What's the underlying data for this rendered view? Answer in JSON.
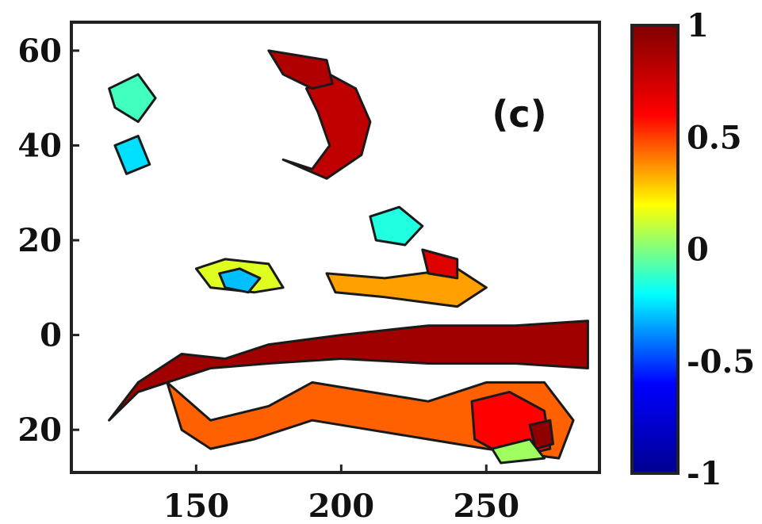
{
  "chart_data": {
    "type": "heatmap",
    "panel_label": "(c)",
    "title": "",
    "xlabel": "",
    "ylabel": "",
    "x_ticks": [
      150,
      200,
      250
    ],
    "y_ticks": [
      {
        "value": 60,
        "label": "60"
      },
      {
        "value": 40,
        "label": "40"
      },
      {
        "value": 20,
        "label": "20"
      },
      {
        "value": 0,
        "label": "0"
      },
      {
        "value": -20,
        "label": "20"
      }
    ],
    "xlim": [
      107,
      289
    ],
    "ylim": [
      -29,
      66
    ],
    "colorbar": {
      "range": [
        -1,
        1
      ],
      "ticks": [
        {
          "value": 1,
          "label": "1"
        },
        {
          "value": 0.5,
          "label": "0.5"
        },
        {
          "value": 0,
          "label": "0"
        },
        {
          "value": -0.5,
          "label": "-0.5"
        },
        {
          "value": -1,
          "label": "-1"
        }
      ],
      "colormap": [
        "#00008f",
        "#0000ff",
        "#00ffff",
        "#ffff00",
        "#ff0000",
        "#800000"
      ]
    },
    "regions": [
      {
        "value": 0.9,
        "points": [
          [
            160,
            -5
          ],
          [
            175,
            -2
          ],
          [
            200,
            0
          ],
          [
            230,
            2
          ],
          [
            260,
            2
          ],
          [
            285,
            3
          ],
          [
            285,
            -7
          ],
          [
            260,
            -6
          ],
          [
            230,
            -6
          ],
          [
            200,
            -5
          ],
          [
            175,
            -6
          ],
          [
            155,
            -7
          ],
          [
            130,
            -12
          ],
          [
            120,
            -18
          ],
          [
            130,
            -10
          ],
          [
            145,
            -4
          ]
        ]
      },
      {
        "value": 0.8,
        "points": [
          [
            180,
            37
          ],
          [
            190,
            35
          ],
          [
            196,
            40
          ],
          [
            192,
            47
          ],
          [
            188,
            52
          ],
          [
            196,
            55
          ],
          [
            205,
            52
          ],
          [
            210,
            45
          ],
          [
            207,
            38
          ],
          [
            195,
            33
          ]
        ]
      },
      {
        "value": 0.85,
        "points": [
          [
            175,
            60
          ],
          [
            195,
            58
          ],
          [
            197,
            53
          ],
          [
            190,
            52
          ],
          [
            180,
            55
          ]
        ]
      },
      {
        "value": 0.45,
        "points": [
          [
            140,
            -10
          ],
          [
            155,
            -18
          ],
          [
            175,
            -15
          ],
          [
            190,
            -10
          ],
          [
            210,
            -12
          ],
          [
            230,
            -14
          ],
          [
            250,
            -10
          ],
          [
            270,
            -10
          ],
          [
            280,
            -18
          ],
          [
            275,
            -26
          ],
          [
            250,
            -24
          ],
          [
            230,
            -22
          ],
          [
            210,
            -20
          ],
          [
            190,
            -18
          ],
          [
            170,
            -22
          ],
          [
            155,
            -24
          ],
          [
            145,
            -20
          ]
        ]
      },
      {
        "value": 0.35,
        "points": [
          [
            195,
            13
          ],
          [
            215,
            12
          ],
          [
            240,
            14
          ],
          [
            250,
            10
          ],
          [
            240,
            6
          ],
          [
            215,
            8
          ],
          [
            198,
            9
          ]
        ]
      },
      {
        "value": 0.15,
        "points": [
          [
            150,
            14
          ],
          [
            160,
            16
          ],
          [
            175,
            15
          ],
          [
            180,
            10
          ],
          [
            170,
            9
          ],
          [
            155,
            10
          ]
        ]
      },
      {
        "value": -0.15,
        "points": [
          [
            210,
            25
          ],
          [
            220,
            27
          ],
          [
            228,
            23
          ],
          [
            222,
            19
          ],
          [
            212,
            20
          ]
        ]
      },
      {
        "value": -0.3,
        "points": [
          [
            158,
            13
          ],
          [
            165,
            14
          ],
          [
            172,
            12
          ],
          [
            168,
            9
          ],
          [
            160,
            10
          ]
        ]
      },
      {
        "value": -0.1,
        "points": [
          [
            120,
            52
          ],
          [
            130,
            55
          ],
          [
            136,
            50
          ],
          [
            130,
            45
          ],
          [
            122,
            48
          ]
        ]
      },
      {
        "value": -0.25,
        "points": [
          [
            122,
            40
          ],
          [
            130,
            42
          ],
          [
            134,
            36
          ],
          [
            126,
            34
          ]
        ]
      },
      {
        "value": 0.6,
        "points": [
          [
            245,
            -14
          ],
          [
            258,
            -12
          ],
          [
            270,
            -16
          ],
          [
            272,
            -24
          ],
          [
            258,
            -26
          ],
          [
            246,
            -22
          ]
        ]
      },
      {
        "value": 0.95,
        "points": [
          [
            265,
            -19
          ],
          [
            272,
            -18
          ],
          [
            273,
            -23
          ],
          [
            267,
            -24
          ]
        ]
      },
      {
        "value": 0.05,
        "points": [
          [
            252,
            -24
          ],
          [
            265,
            -22
          ],
          [
            270,
            -26
          ],
          [
            255,
            -27
          ]
        ]
      },
      {
        "value": 0.7,
        "points": [
          [
            228,
            18
          ],
          [
            240,
            16
          ],
          [
            240,
            12
          ],
          [
            230,
            13
          ]
        ]
      }
    ]
  }
}
